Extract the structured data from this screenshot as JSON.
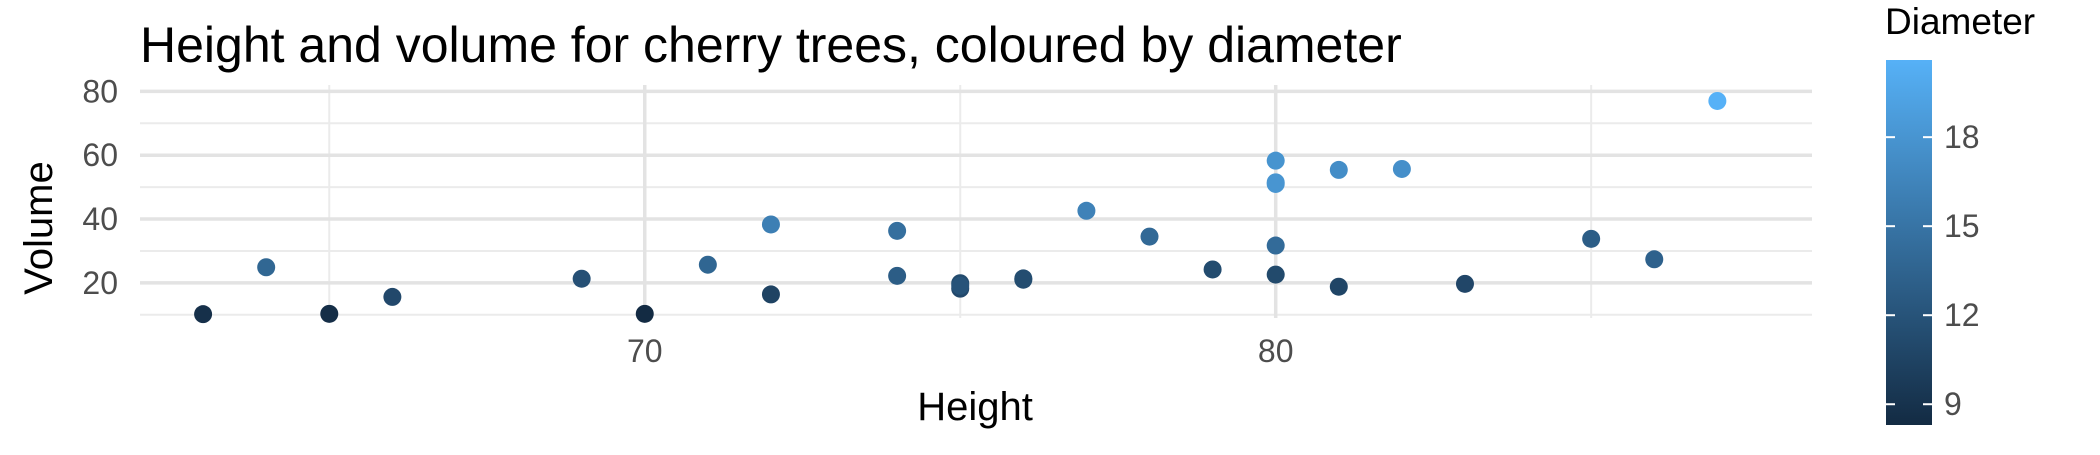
{
  "chart_data": {
    "type": "scatter",
    "title": "Height and volume for cherry trees, coloured by diameter",
    "xlabel": "Height",
    "ylabel": "Volume",
    "xlim": [
      62,
      88.5
    ],
    "ylim": [
      9,
      82
    ],
    "x_ticks": [
      70,
      80
    ],
    "x_tick_labels": [
      "70",
      "80"
    ],
    "x_minor_ticks": [
      65,
      75,
      85
    ],
    "y_ticks": [
      20,
      40,
      60,
      80
    ],
    "y_tick_labels": [
      "20",
      "40",
      "60",
      "80"
    ],
    "y_minor_ticks": [
      10,
      30,
      50,
      70
    ],
    "grid": true,
    "color_scale": {
      "title": "Diameter",
      "min": 8.3,
      "max": 20.6,
      "low_color": "#132B43",
      "high_color": "#56B1F7",
      "ticks": [
        9,
        12,
        15,
        18
      ],
      "tick_labels": [
        "9",
        "12",
        "15",
        "18"
      ],
      "placement": "right"
    },
    "points": [
      {
        "x": 70,
        "y": 10.3,
        "color_value": 8.3
      },
      {
        "x": 65,
        "y": 10.3,
        "color_value": 8.6
      },
      {
        "x": 63,
        "y": 10.2,
        "color_value": 8.8
      },
      {
        "x": 72,
        "y": 16.4,
        "color_value": 10.5
      },
      {
        "x": 81,
        "y": 18.8,
        "color_value": 10.7
      },
      {
        "x": 83,
        "y": 19.7,
        "color_value": 10.8
      },
      {
        "x": 66,
        "y": 15.6,
        "color_value": 11.0
      },
      {
        "x": 75,
        "y": 18.2,
        "color_value": 11.0
      },
      {
        "x": 80,
        "y": 22.6,
        "color_value": 11.1
      },
      {
        "x": 75,
        "y": 19.9,
        "color_value": 11.2
      },
      {
        "x": 79,
        "y": 24.2,
        "color_value": 11.3
      },
      {
        "x": 76,
        "y": 21.0,
        "color_value": 11.4
      },
      {
        "x": 76,
        "y": 21.4,
        "color_value": 11.4
      },
      {
        "x": 69,
        "y": 21.3,
        "color_value": 11.7
      },
      {
        "x": 75,
        "y": 19.1,
        "color_value": 12.0
      },
      {
        "x": 74,
        "y": 22.2,
        "color_value": 12.9
      },
      {
        "x": 85,
        "y": 33.8,
        "color_value": 12.9
      },
      {
        "x": 86,
        "y": 27.4,
        "color_value": 13.3
      },
      {
        "x": 71,
        "y": 25.7,
        "color_value": 13.7
      },
      {
        "x": 64,
        "y": 24.9,
        "color_value": 13.8
      },
      {
        "x": 78,
        "y": 34.5,
        "color_value": 14.0
      },
      {
        "x": 80,
        "y": 31.7,
        "color_value": 14.2
      },
      {
        "x": 74,
        "y": 36.3,
        "color_value": 14.5
      },
      {
        "x": 72,
        "y": 38.3,
        "color_value": 16.0
      },
      {
        "x": 77,
        "y": 42.6,
        "color_value": 16.3
      },
      {
        "x": 81,
        "y": 55.4,
        "color_value": 17.3
      },
      {
        "x": 82,
        "y": 55.7,
        "color_value": 17.5
      },
      {
        "x": 80,
        "y": 58.3,
        "color_value": 17.9
      },
      {
        "x": 80,
        "y": 51.5,
        "color_value": 18.0
      },
      {
        "x": 80,
        "y": 51.0,
        "color_value": 18.0
      },
      {
        "x": 87,
        "y": 77.0,
        "color_value": 20.6
      }
    ]
  }
}
